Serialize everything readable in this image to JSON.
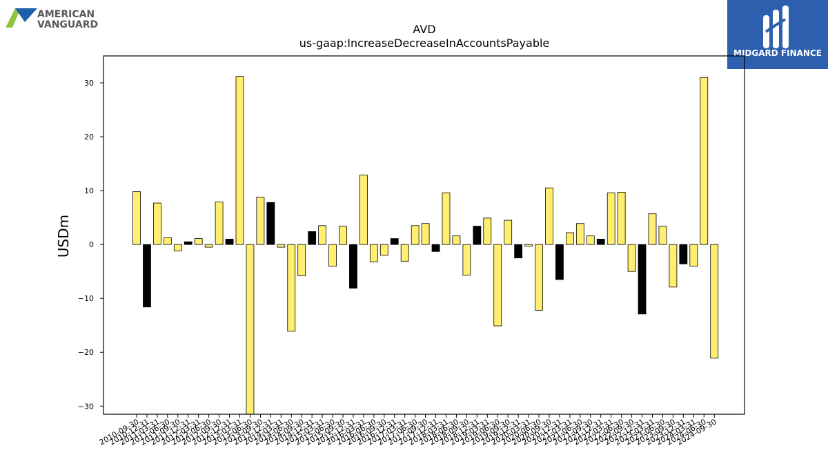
{
  "logos": {
    "left": {
      "line1": "AMERICAN",
      "line2": "VANGUARD",
      "colors": {
        "green": "#8dc63f",
        "blue": "#1e5fa8",
        "text": "#58595b"
      }
    },
    "right": {
      "name": "MIDGARD FINANCE",
      "background": "#2d5fae"
    }
  },
  "chart_data": {
    "type": "bar",
    "title": "AVD",
    "subtitle": "us-gaap:IncreaseDecreaseInAccountsPayable",
    "ylabel": "USDm",
    "xlabel": "",
    "ylim": [
      -31.5,
      35
    ],
    "yticks": [
      -30,
      -20,
      -10,
      0,
      10,
      20,
      30
    ],
    "grid": false,
    "colors": {
      "annual": "#000000",
      "quarterly": "#ffee70",
      "edge": "#000000"
    },
    "categories": [
      "2010-09-30",
      "2010-12-31",
      "2011-03-31",
      "2011-06-30",
      "2011-09-30",
      "2011-12-31",
      "2012-03-31",
      "2012-06-30",
      "2012-09-30",
      "2012-12-31",
      "2013-03-31",
      "2013-06-30",
      "2013-09-30",
      "2013-12-31",
      "2014-03-31",
      "2014-06-30",
      "2014-09-30",
      "2014-12-31",
      "2015-03-31",
      "2015-06-30",
      "2015-09-30",
      "2015-12-31",
      "2016-03-31",
      "2016-06-30",
      "2016-09-30",
      "2016-12-31",
      "2017-03-31",
      "2017-06-30",
      "2017-09-30",
      "2017-12-31",
      "2018-03-31",
      "2018-06-30",
      "2018-09-30",
      "2018-12-31",
      "2019-03-31",
      "2019-06-30",
      "2019-09-30",
      "2019-12-31",
      "2020-03-31",
      "2020-06-30",
      "2020-09-30",
      "2020-12-31",
      "2021-03-31",
      "2021-06-30",
      "2021-09-30",
      "2021-12-31",
      "2022-03-31",
      "2022-06-30",
      "2022-09-30",
      "2022-12-31",
      "2023-03-31",
      "2023-06-30",
      "2023-09-30",
      "2023-12-31",
      "2024-03-31",
      "2024-06-30",
      "2024-09-30"
    ],
    "values": [
      9.8,
      -11.6,
      7.7,
      1.3,
      -1.2,
      0.5,
      1.1,
      -0.5,
      7.9,
      1.0,
      31.2,
      -31.5,
      8.8,
      7.8,
      -0.5,
      -16.1,
      -5.8,
      2.4,
      3.5,
      -4.0,
      3.4,
      -8.1,
      12.9,
      -3.2,
      -2.0,
      1.1,
      -3.1,
      3.5,
      3.9,
      -1.3,
      9.6,
      1.6,
      -5.7,
      3.4,
      4.9,
      -15.1,
      4.5,
      -2.5,
      -0.3,
      -12.2,
      10.5,
      -6.5,
      2.2,
      3.9,
      1.6,
      1.0,
      9.6,
      9.7,
      -5.0,
      -12.9,
      5.7,
      3.4,
      -7.9,
      -3.6,
      -4.0,
      31.0,
      -21.1
    ],
    "annual": [
      false,
      true,
      false,
      false,
      false,
      true,
      false,
      false,
      false,
      true,
      false,
      false,
      false,
      true,
      false,
      false,
      false,
      true,
      false,
      false,
      false,
      true,
      false,
      false,
      false,
      true,
      false,
      false,
      false,
      true,
      false,
      false,
      false,
      true,
      false,
      false,
      false,
      true,
      false,
      false,
      false,
      true,
      false,
      false,
      false,
      true,
      false,
      false,
      false,
      true,
      false,
      false,
      false,
      true,
      false,
      false,
      false
    ]
  }
}
